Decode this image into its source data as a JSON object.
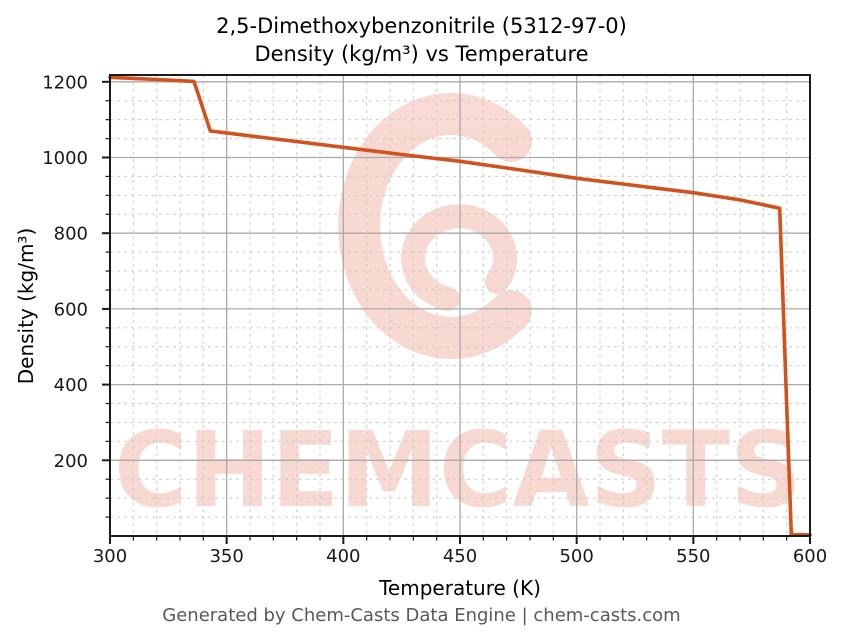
{
  "title": {
    "line1": "2,5-Dimethoxybenzonitrile (5312-97-0)",
    "line2": "Density (kg/m³) vs Temperature"
  },
  "footer": {
    "text": "Generated by Chem-Casts Data Engine | chem-casts.com"
  },
  "watermark": {
    "text": "CHEMCASTS",
    "color": "#e04826",
    "opacity": 0.2,
    "logo": "chem-casts-c-swirl"
  },
  "colors": {
    "line": "#d0521d",
    "spine": "#1a1a1a",
    "tick_label": "#1a1a1a",
    "grid_major": "#aaaaaa",
    "grid_minor": "#cccccc",
    "footer_text": "#57595b"
  },
  "chart_data": {
    "type": "line",
    "title": "2,5-Dimethoxybenzonitrile (5312-97-0) Density (kg/m³) vs Temperature",
    "xlabel": "Temperature (K)",
    "ylabel": "Density (kg/m³)",
    "xlim": [
      300,
      600
    ],
    "ylim": [
      0,
      1218
    ],
    "x_major_ticks": [
      300,
      350,
      400,
      450,
      500,
      550,
      600
    ],
    "x_minor_step": 10,
    "y_major_ticks": [
      200,
      400,
      600,
      800,
      1000,
      1200
    ],
    "y_minor_step": 50,
    "grid": true,
    "legend_position": "none",
    "series": [
      {
        "name": "Density",
        "color": "#d0521d",
        "points": [
          [
            300,
            1212
          ],
          [
            310,
            1209
          ],
          [
            320,
            1206
          ],
          [
            330,
            1203
          ],
          [
            336,
            1201
          ],
          [
            343,
            1070
          ],
          [
            350,
            1065
          ],
          [
            360,
            1057
          ],
          [
            375,
            1046
          ],
          [
            400,
            1027
          ],
          [
            425,
            1008
          ],
          [
            450,
            990
          ],
          [
            475,
            968
          ],
          [
            500,
            945
          ],
          [
            525,
            926
          ],
          [
            550,
            907
          ],
          [
            570,
            888
          ],
          [
            587,
            866
          ],
          [
            592,
            4
          ],
          [
            600,
            3
          ]
        ]
      }
    ]
  }
}
